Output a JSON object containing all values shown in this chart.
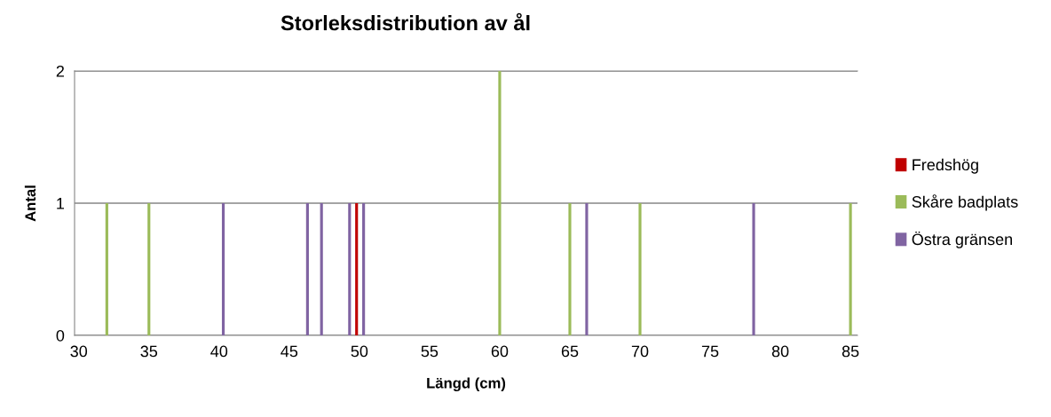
{
  "chart_data": {
    "type": "bar",
    "title": "Storleksdistribution av ål",
    "xlabel": "Längd (cm)",
    "ylabel": "Antal",
    "series": [
      {
        "name": "Fredshög",
        "color": "#c00000",
        "x": [
          49.8
        ],
        "values": [
          1
        ]
      },
      {
        "name": "Skåre badplats",
        "color": "#9bbb59",
        "x": [
          32,
          35,
          60,
          65,
          70,
          85
        ],
        "values": [
          1,
          1,
          2,
          1,
          1,
          1
        ]
      },
      {
        "name": "Östra gränsen",
        "color": "#8064a2",
        "x": [
          40.3,
          46.3,
          47.3,
          49.3,
          50.3,
          66.2,
          78.1
        ],
        "values": [
          1,
          1,
          1,
          1,
          1,
          1,
          1
        ]
      }
    ],
    "xlim": [
      29.7,
      85.5
    ],
    "xticks": [
      30,
      35,
      40,
      45,
      50,
      55,
      60,
      65,
      70,
      75,
      80,
      85
    ],
    "ylim": [
      0,
      2
    ],
    "yticks": [
      0,
      1,
      2
    ],
    "grid": "y",
    "legend": "right"
  }
}
